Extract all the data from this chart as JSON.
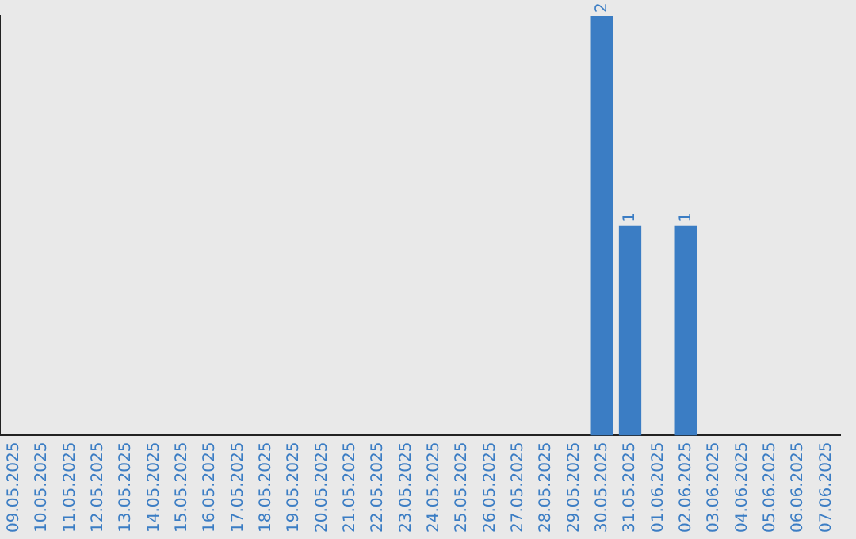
{
  "chart_data": {
    "type": "bar",
    "categories": [
      "09.05.2025",
      "10.05.2025",
      "11.05.2025",
      "12.05.2025",
      "13.05.2025",
      "14.05.2025",
      "15.05.2025",
      "16.05.2025",
      "17.05.2025",
      "18.05.2025",
      "19.05.2025",
      "20.05.2025",
      "21.05.2025",
      "22.05.2025",
      "23.05.2025",
      "24.05.2025",
      "25.05.2025",
      "26.05.2025",
      "27.05.2025",
      "28.05.2025",
      "29.05.2025",
      "30.05.2025",
      "31.05.2025",
      "01.06.2025",
      "02.06.2025",
      "03.06.2025",
      "04.06.2025",
      "05.06.2025",
      "06.06.2025",
      "07.06.2025"
    ],
    "values": [
      null,
      null,
      null,
      null,
      null,
      null,
      null,
      null,
      null,
      null,
      null,
      null,
      null,
      null,
      null,
      null,
      null,
      null,
      null,
      null,
      null,
      2,
      1,
      null,
      1,
      null,
      null,
      null,
      null,
      null
    ],
    "color": "#3b7dc4",
    "data_labels": true,
    "grid": false,
    "legend": false,
    "tick_labels": "x"
  }
}
